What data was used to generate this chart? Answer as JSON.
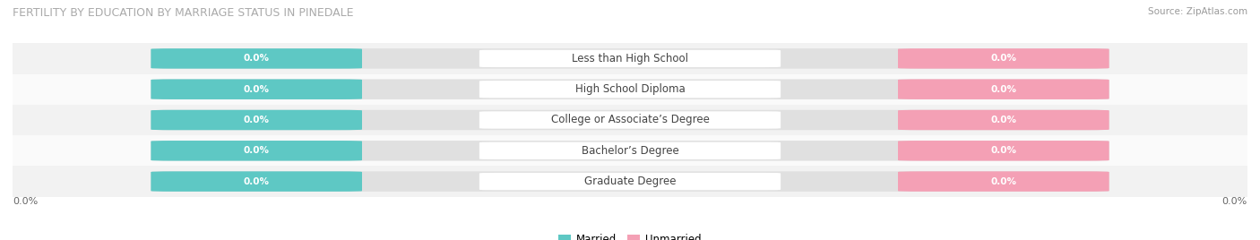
{
  "title": "FERTILITY BY EDUCATION BY MARRIAGE STATUS IN PINEDALE",
  "source": "Source: ZipAtlas.com",
  "categories": [
    "Less than High School",
    "High School Diploma",
    "College or Associate’s Degree",
    "Bachelor’s Degree",
    "Graduate Degree"
  ],
  "married_values": [
    0.0,
    0.0,
    0.0,
    0.0,
    0.0
  ],
  "unmarried_values": [
    0.0,
    0.0,
    0.0,
    0.0,
    0.0
  ],
  "married_color": "#5ec8c4",
  "unmarried_color": "#f4a0b5",
  "bar_bg_color": "#e0e0e0",
  "row_bg_odd": "#f2f2f2",
  "row_bg_even": "#fafafa",
  "xlim_left": "0.0%",
  "xlim_right": "0.0%",
  "title_fontsize": 9,
  "source_fontsize": 7.5,
  "cat_fontsize": 8.5,
  "val_fontsize": 7.5,
  "legend_fontsize": 8.5,
  "tick_fontsize": 8
}
